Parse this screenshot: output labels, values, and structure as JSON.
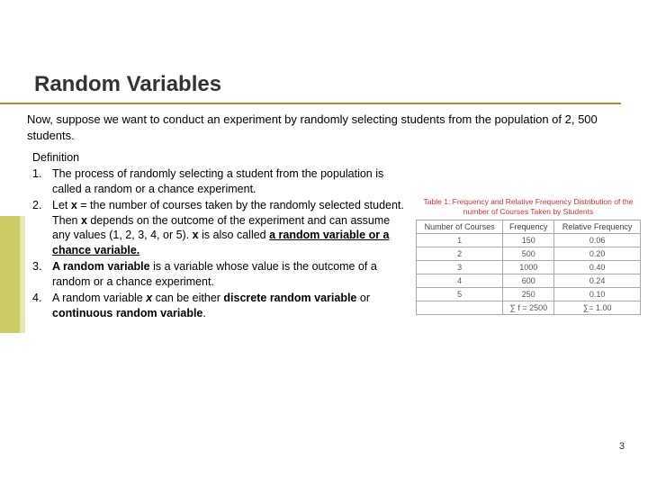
{
  "title": "Random Variables",
  "intro": "Now, suppose we want to conduct an experiment by randomly selecting students from the population of 2, 500 students.",
  "def_heading": "Definition",
  "items": {
    "n1": "1.",
    "b1": "The process of randomly selecting a student from the population is called a random or a chance experiment.",
    "n2": "2.",
    "b2a": "Let ",
    "b2b": "x",
    "b2c": " = the number of courses taken by the randomly selected student. Then ",
    "b2d": "x",
    "b2e": " depends on the outcome of the experiment and can assume any values (1, 2, 3, 4, or 5). ",
    "b2f": "x",
    "b2g": " is also called ",
    "b2h": "a random variable or a chance variable.",
    "n3": "3.",
    "b3a": "A random variable",
    "b3b": " is a variable whose value is the outcome of a random or a chance experiment.",
    "n4": "4.",
    "b4a": "A random variable ",
    "b4b": "x",
    "b4c": " can be either ",
    "b4d": "discrete random variable",
    "b4e": " or ",
    "b4f": "continuous random variable",
    "b4g": "."
  },
  "table": {
    "caption": "Table 1: Frequency and Relative Frequency Distribution of the number of Courses Taken by Students",
    "h1": "Number of Courses",
    "h2": "Frequency",
    "h3": "Relative Frequency",
    "rows": {
      "r0c0": "1",
      "r0c1": "150",
      "r0c2": "0.06",
      "r1c0": "2",
      "r1c1": "500",
      "r1c2": "0.20",
      "r2c0": "3",
      "r2c1": "1000",
      "r2c2": "0.40",
      "r3c0": "4",
      "r3c1": "600",
      "r3c2": "0.24",
      "r4c0": "5",
      "r4c1": "250",
      "r4c2": "0.10"
    },
    "foot1": "∑ f = 2500",
    "foot2": "∑= 1.00"
  },
  "page": "3"
}
